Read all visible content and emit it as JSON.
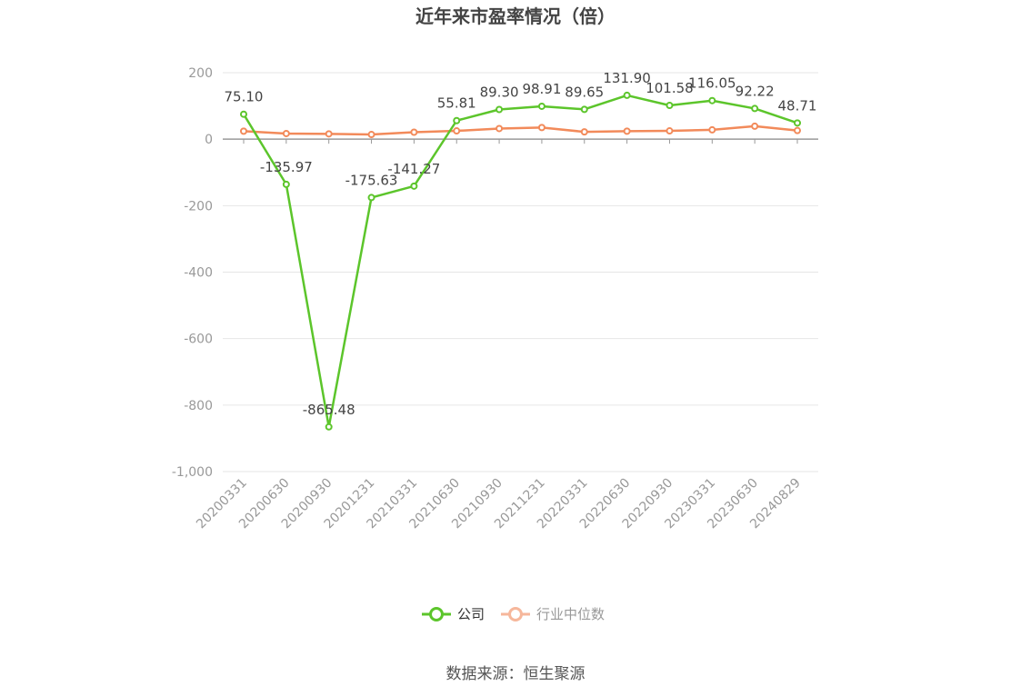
{
  "chart_data": {
    "type": "line",
    "title": "近年来市盈率情况（倍）",
    "categories": [
      "20200331",
      "20200630",
      "20200930",
      "20201231",
      "20210331",
      "20210630",
      "20210930",
      "20211231",
      "20220331",
      "20220630",
      "20220930",
      "20230331",
      "20230630",
      "20240829"
    ],
    "series": [
      {
        "name": "公司",
        "color": "#5cc52b",
        "values": [
          75.1,
          -135.97,
          -865.48,
          -175.63,
          -141.27,
          55.81,
          89.3,
          98.91,
          89.65,
          131.9,
          101.58,
          116.05,
          92.22,
          48.71
        ],
        "labels": [
          "75.10",
          "-135.97",
          "-865.48",
          "-175.63",
          "-141.27",
          "55.81",
          "89.30",
          "98.91",
          "89.65",
          "131.90",
          "101.58",
          "116.05",
          "92.22",
          "48.71"
        ]
      },
      {
        "name": "行业中位数",
        "color": "#f28a5a",
        "values": [
          24,
          17,
          16,
          14,
          21,
          25,
          32,
          35,
          22,
          24,
          25,
          28,
          39,
          26
        ]
      }
    ],
    "ylim": [
      -1000,
      200
    ],
    "yticks": [
      200,
      0,
      -200,
      -400,
      -600,
      -800,
      -1000
    ],
    "ytick_labels": [
      "200",
      "0",
      "-200",
      "-400",
      "-600",
      "-800",
      "-1,000"
    ],
    "grid": true,
    "legend_position": "bottom-center",
    "xlabel": "",
    "ylabel": ""
  },
  "legend": {
    "company": "公司",
    "industry": "行业中位数"
  },
  "footer": {
    "source": "数据来源：恒生聚源"
  }
}
